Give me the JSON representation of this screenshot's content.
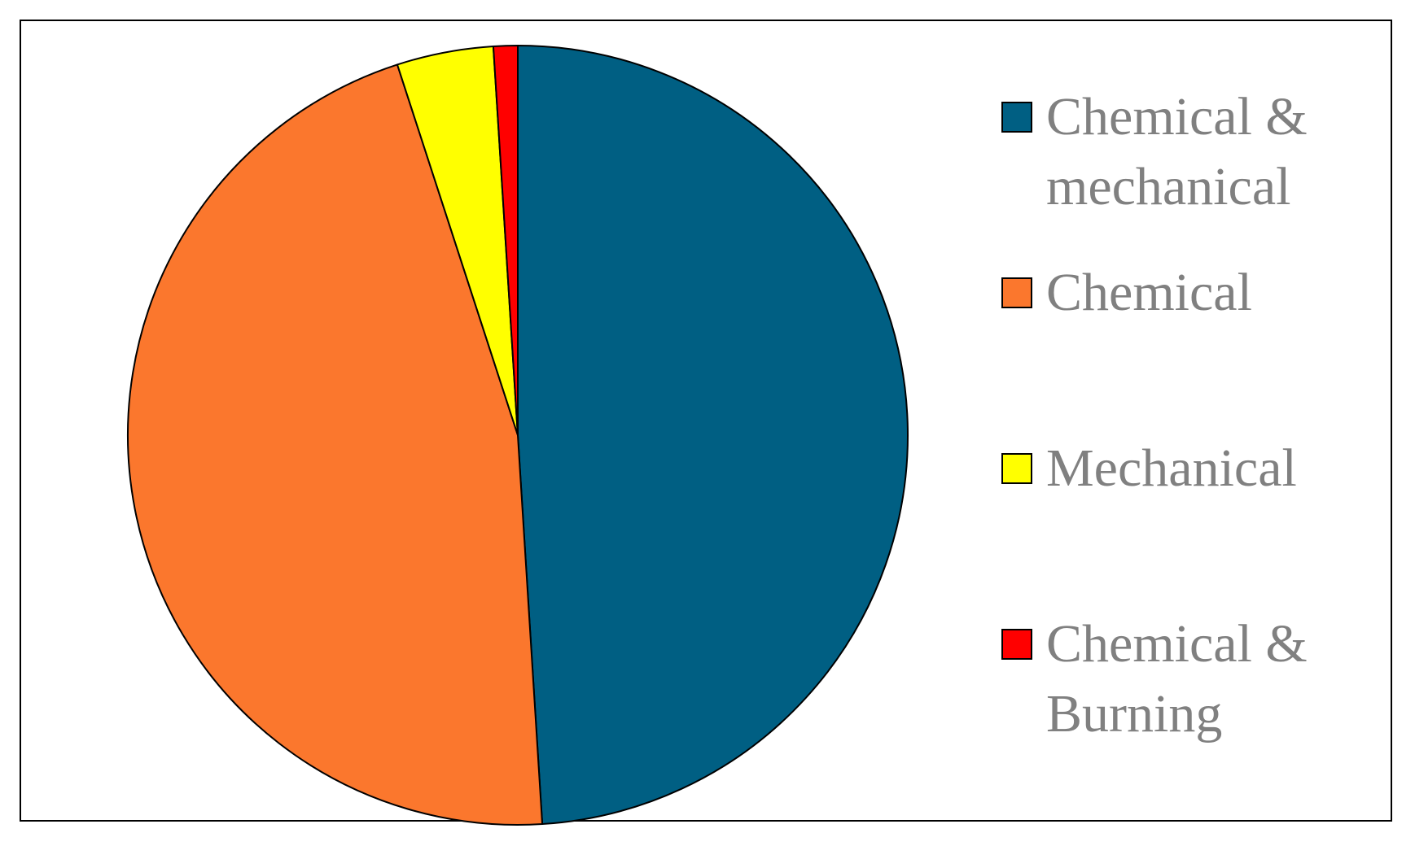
{
  "chart_data": {
    "type": "pie",
    "categories": [
      "Chemical & mechanical",
      "Chemical",
      "Mechanical",
      "Chemical & Burning"
    ],
    "values": [
      49,
      46,
      4,
      1
    ],
    "colors": [
      "#005f83",
      "#fb772d",
      "#ffff00",
      "#ff0000"
    ],
    "legend": "right"
  }
}
